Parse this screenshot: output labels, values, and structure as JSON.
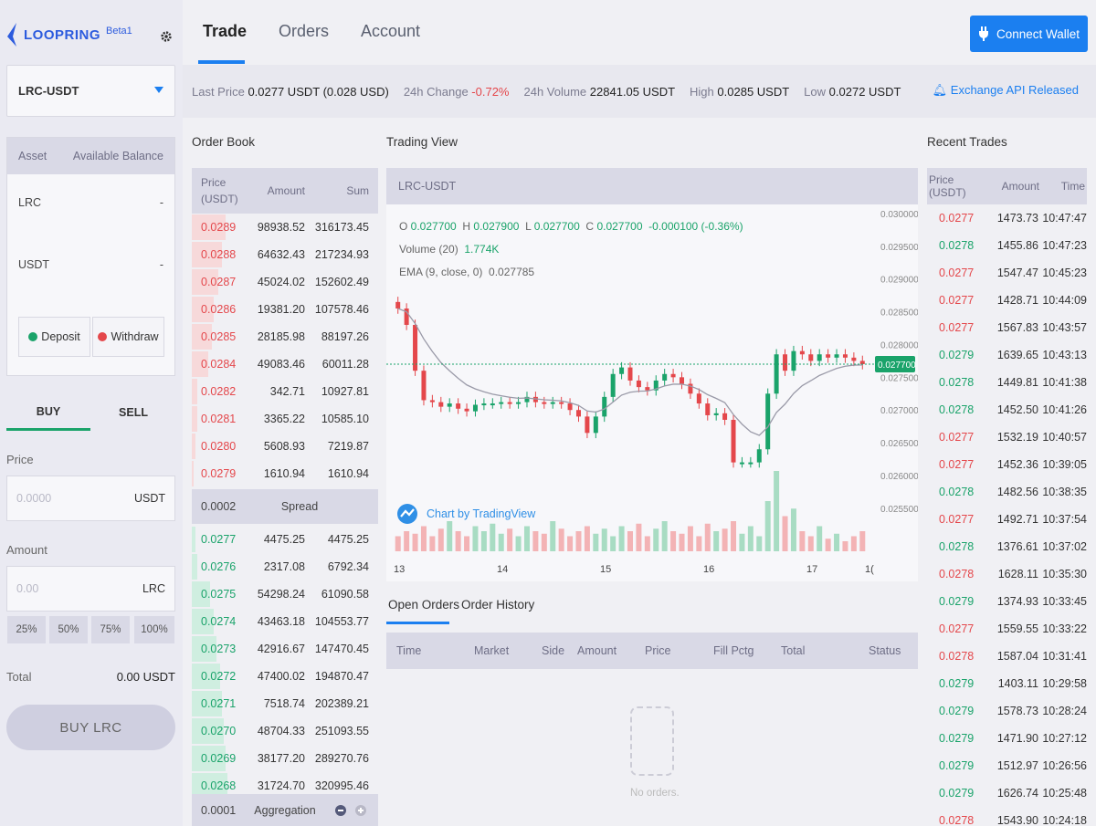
{
  "brand": {
    "name": "LOOPRING",
    "badge": "Beta1"
  },
  "nav": {
    "tabs": [
      "Trade",
      "Orders",
      "Account"
    ],
    "connect_label": "Connect Wallet"
  },
  "market": {
    "pair": "LRC-USDT"
  },
  "ticker": {
    "last_price_label": "Last Price",
    "last_price": "0.0277 USDT (0.028 USD)",
    "change_label": "24h Change",
    "change": "-0.72%",
    "volume_label": "24h Volume",
    "volume": "22841.05 USDT",
    "high_label": "High",
    "high": "0.0285 USDT",
    "low_label": "Low",
    "low": "0.0272 USDT",
    "api_link": "Exchange API Released"
  },
  "balance": {
    "headers": [
      "Asset",
      "Available Balance"
    ],
    "rows": [
      {
        "asset": "LRC",
        "value": "-"
      },
      {
        "asset": "USDT",
        "value": "-"
      }
    ],
    "deposit": "Deposit",
    "withdraw": "Withdraw"
  },
  "trade_form": {
    "tabs": [
      "BUY",
      "SELL"
    ],
    "price_label": "Price",
    "price_placeholder": "0.0000",
    "price_unit": "USDT",
    "amount_label": "Amount",
    "amount_placeholder": "0.00",
    "amount_unit": "LRC",
    "pcts": [
      "25%",
      "50%",
      "75%",
      "100%"
    ],
    "total_label": "Total",
    "total_value": "0.00 USDT",
    "submit": "BUY  LRC"
  },
  "orderbook": {
    "title": "Order Book",
    "headers": [
      "Price (USDT)",
      "Amount",
      "Sum"
    ],
    "asks": [
      {
        "price": "0.0289",
        "amount": "98938.52",
        "sum": "316173.45",
        "depth": 0.18
      },
      {
        "price": "0.0288",
        "amount": "64632.43",
        "sum": "217234.93",
        "depth": 0.16
      },
      {
        "price": "0.0287",
        "amount": "45024.02",
        "sum": "152602.49",
        "depth": 0.14
      },
      {
        "price": "0.0286",
        "amount": "19381.20",
        "sum": "107578.46",
        "depth": 0.12
      },
      {
        "price": "0.0285",
        "amount": "28185.98",
        "sum": "88197.26",
        "depth": 0.11
      },
      {
        "price": "0.0284",
        "amount": "49083.46",
        "sum": "60011.28",
        "depth": 0.09
      },
      {
        "price": "0.0282",
        "amount": "342.71",
        "sum": "10927.81",
        "depth": 0.03
      },
      {
        "price": "0.0281",
        "amount": "3365.22",
        "sum": "10585.10",
        "depth": 0.03
      },
      {
        "price": "0.0280",
        "amount": "5608.93",
        "sum": "7219.87",
        "depth": 0.02
      },
      {
        "price": "0.0279",
        "amount": "1610.94",
        "sum": "1610.94",
        "depth": 0.01
      }
    ],
    "spread_value": "0.0002",
    "spread_label": "Spread",
    "bids": [
      {
        "price": "0.0277",
        "amount": "4475.25",
        "sum": "4475.25",
        "depth": 0.02
      },
      {
        "price": "0.0276",
        "amount": "2317.08",
        "sum": "6792.34",
        "depth": 0.03
      },
      {
        "price": "0.0275",
        "amount": "54298.24",
        "sum": "61090.58",
        "depth": 0.1
      },
      {
        "price": "0.0274",
        "amount": "43463.18",
        "sum": "104553.77",
        "depth": 0.12
      },
      {
        "price": "0.0273",
        "amount": "42916.67",
        "sum": "147470.45",
        "depth": 0.13
      },
      {
        "price": "0.0272",
        "amount": "47400.02",
        "sum": "194870.47",
        "depth": 0.15
      },
      {
        "price": "0.0271",
        "amount": "7518.74",
        "sum": "202389.21",
        "depth": 0.16
      },
      {
        "price": "0.0270",
        "amount": "48704.33",
        "sum": "251093.55",
        "depth": 0.17
      },
      {
        "price": "0.0269",
        "amount": "38177.20",
        "sum": "289270.76",
        "depth": 0.18
      },
      {
        "price": "0.0268",
        "amount": "31724.70",
        "sum": "320995.46",
        "depth": 0.19
      }
    ],
    "aggregation_value": "0.0001",
    "aggregation_label": "Aggregation"
  },
  "chart_data": {
    "type": "candlestick",
    "title": "Trading View",
    "pair": "LRC-USDT",
    "ohlc_line": {
      "o": "0.027700",
      "h": "0.027900",
      "l": "0.027700",
      "c": "0.027700",
      "chg": "-0.000100 (-0.36%)"
    },
    "volume_line": {
      "label": "Volume (20)",
      "value": "1.774K"
    },
    "ema_line": {
      "label": "EMA (9, close, 0)",
      "value": "0.027785"
    },
    "y_ticks": [
      "0.030000",
      "0.029500",
      "0.029000",
      "0.028500",
      "0.028000",
      "0.027500",
      "0.027000",
      "0.026500",
      "0.026000",
      "0.025500"
    ],
    "x_ticks": [
      "13",
      "14",
      "15",
      "16",
      "17",
      "1("
    ],
    "last_price_tag": "0.027700",
    "watermark": "Chart by TradingView",
    "ylim": [
      0.0254,
      0.03
    ],
    "closes": [
      0.02855,
      0.0283,
      0.0276,
      0.02715,
      0.02712,
      0.02705,
      0.0271,
      0.02702,
      0.02698,
      0.02708,
      0.0271,
      0.0271,
      0.02712,
      0.0271,
      0.02712,
      0.0272,
      0.02712,
      0.0271,
      0.02712,
      0.0271,
      0.027,
      0.0269,
      0.02665,
      0.0269,
      0.0272,
      0.02755,
      0.02765,
      0.02745,
      0.02735,
      0.0273,
      0.02745,
      0.02755,
      0.0275,
      0.0274,
      0.02725,
      0.0271,
      0.02692,
      0.02695,
      0.02685,
      0.0262,
      0.0262,
      0.0262,
      0.0264,
      0.02725,
      0.02785,
      0.0276,
      0.0279,
      0.02785,
      0.02775,
      0.02785,
      0.0278,
      0.02785,
      0.0278,
      0.02775,
      0.0277
    ],
    "volumes": [
      0.3,
      0.4,
      0.35,
      0.5,
      0.3,
      0.45,
      0.6,
      0.4,
      0.3,
      0.5,
      0.4,
      0.55,
      0.35,
      0.45,
      0.3,
      0.5,
      0.4,
      0.35,
      0.6,
      0.45,
      0.3,
      0.4,
      0.5,
      0.35,
      0.45,
      0.3,
      0.5,
      0.4,
      0.55,
      0.3,
      0.45,
      0.6,
      0.4,
      0.35,
      0.5,
      0.3,
      0.55,
      0.4,
      0.45,
      0.6,
      0.35,
      0.5,
      0.3,
      1.0,
      1.6,
      0.7,
      0.85,
      0.4,
      0.3,
      0.5,
      0.25,
      0.35,
      0.2,
      0.3,
      0.4
    ]
  },
  "open_orders": {
    "tabs": [
      "Open Orders",
      "Order History"
    ],
    "headers": [
      "Time",
      "Market",
      "Side",
      "Amount",
      "Price",
      "Fill Pctg",
      "Total",
      "Status"
    ],
    "empty": "No orders."
  },
  "recent_trades": {
    "title": "Recent Trades",
    "headers": [
      "Price (USDT)",
      "Amount",
      "Time"
    ],
    "rows": [
      {
        "price": "0.0277",
        "amount": "1473.73",
        "time": "10:47:47",
        "side": "sell"
      },
      {
        "price": "0.0278",
        "amount": "1455.86",
        "time": "10:47:23",
        "side": "buy"
      },
      {
        "price": "0.0277",
        "amount": "1547.47",
        "time": "10:45:23",
        "side": "sell"
      },
      {
        "price": "0.0277",
        "amount": "1428.71",
        "time": "10:44:09",
        "side": "sell"
      },
      {
        "price": "0.0277",
        "amount": "1567.83",
        "time": "10:43:57",
        "side": "sell"
      },
      {
        "price": "0.0279",
        "amount": "1639.65",
        "time": "10:43:13",
        "side": "buy"
      },
      {
        "price": "0.0278",
        "amount": "1449.81",
        "time": "10:41:38",
        "side": "buy"
      },
      {
        "price": "0.0278",
        "amount": "1452.50",
        "time": "10:41:26",
        "side": "buy"
      },
      {
        "price": "0.0277",
        "amount": "1532.19",
        "time": "10:40:57",
        "side": "sell"
      },
      {
        "price": "0.0277",
        "amount": "1452.36",
        "time": "10:39:05",
        "side": "sell"
      },
      {
        "price": "0.0278",
        "amount": "1482.56",
        "time": "10:38:35",
        "side": "buy"
      },
      {
        "price": "0.0277",
        "amount": "1492.71",
        "time": "10:37:54",
        "side": "sell"
      },
      {
        "price": "0.0278",
        "amount": "1376.61",
        "time": "10:37:02",
        "side": "buy"
      },
      {
        "price": "0.0278",
        "amount": "1628.11",
        "time": "10:35:30",
        "side": "sell"
      },
      {
        "price": "0.0279",
        "amount": "1374.93",
        "time": "10:33:45",
        "side": "buy"
      },
      {
        "price": "0.0277",
        "amount": "1559.55",
        "time": "10:33:22",
        "side": "sell"
      },
      {
        "price": "0.0278",
        "amount": "1587.04",
        "time": "10:31:41",
        "side": "sell"
      },
      {
        "price": "0.0279",
        "amount": "1403.11",
        "time": "10:29:58",
        "side": "buy"
      },
      {
        "price": "0.0279",
        "amount": "1578.73",
        "time": "10:28:24",
        "side": "buy"
      },
      {
        "price": "0.0279",
        "amount": "1471.90",
        "time": "10:27:12",
        "side": "buy"
      },
      {
        "price": "0.0279",
        "amount": "1512.97",
        "time": "10:26:56",
        "side": "buy"
      },
      {
        "price": "0.0279",
        "amount": "1626.74",
        "time": "10:25:48",
        "side": "buy"
      },
      {
        "price": "0.0278",
        "amount": "1543.90",
        "time": "10:24:18",
        "side": "sell"
      }
    ]
  },
  "colors": {
    "accent": "#1b7ff0",
    "up": "#1aa36a",
    "down": "#e4474b"
  }
}
